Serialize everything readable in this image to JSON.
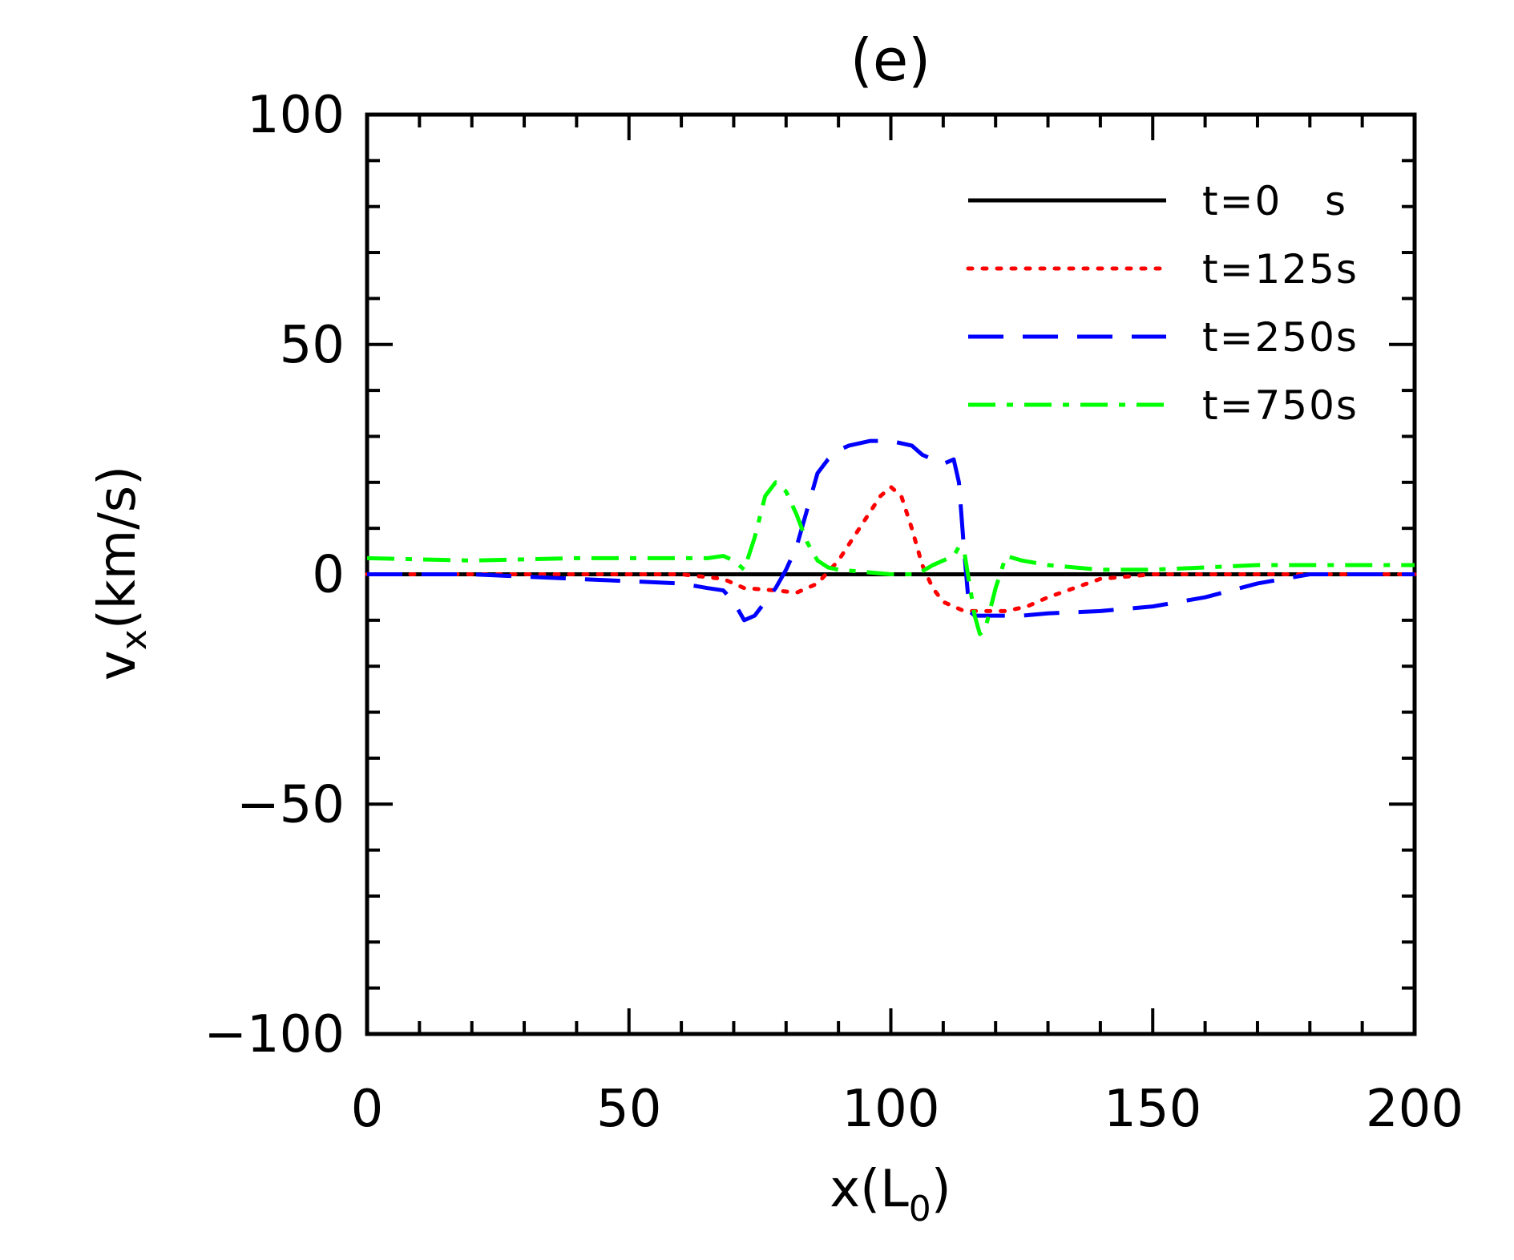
{
  "chart_data": {
    "type": "line",
    "title": "(e)",
    "xlabel": "x(L",
    "xlabel_sub": "0",
    "xlabel_end": ")",
    "ylabel": "v",
    "ylabel_sub": "x",
    "ylabel_end": "(km/s)",
    "xlim": [
      0,
      200
    ],
    "ylim": [
      -100,
      100
    ],
    "xticks": [
      0,
      50,
      100,
      150,
      200
    ],
    "xtick_labels": [
      "0",
      "50",
      "100",
      "150",
      "200"
    ],
    "yticks": [
      100,
      50,
      0,
      -50,
      -100
    ],
    "ytick_labels": [
      "100",
      "50",
      "0",
      "−50",
      "−100"
    ],
    "x_minor_step": 10,
    "y_minor_step": 10,
    "grid": false,
    "legend_position": "top-right",
    "series": [
      {
        "name": "t=0   s",
        "color": "#000000",
        "style": "solid",
        "x": [
          0,
          200
        ],
        "y": [
          0,
          0
        ]
      },
      {
        "name": "t=125s",
        "color": "#ff0000",
        "style": "dotted",
        "x": [
          0,
          20,
          40,
          60,
          68,
          72,
          78,
          82,
          86,
          90,
          94,
          98,
          100,
          102,
          104,
          106,
          108,
          110,
          114,
          118,
          122,
          126,
          130,
          140,
          150,
          160,
          170,
          180,
          190,
          200
        ],
        "y": [
          0,
          0,
          0,
          0,
          -1,
          -3,
          -3.5,
          -4,
          -2,
          3,
          10,
          17,
          19,
          17,
          10,
          2,
          -3,
          -6,
          -8,
          -8,
          -8,
          -7,
          -5,
          -1,
          0,
          0,
          0,
          0,
          0,
          0
        ]
      },
      {
        "name": "t=250s",
        "color": "#0000ff",
        "style": "dashed",
        "x": [
          0,
          20,
          40,
          60,
          65,
          68,
          70,
          72,
          74,
          76,
          78,
          80,
          82,
          84,
          86,
          88,
          90,
          92,
          94,
          96,
          98,
          100,
          102,
          104,
          106,
          108,
          110,
          112,
          113,
          114,
          115,
          116,
          118,
          120,
          122,
          125,
          130,
          140,
          150,
          160,
          170,
          180,
          190,
          200
        ],
        "y": [
          0,
          0,
          -1,
          -2,
          -3,
          -3.5,
          -6,
          -10,
          -9,
          -6,
          -3,
          1,
          6,
          14,
          22,
          25,
          27,
          28,
          28.5,
          29,
          29,
          29,
          28.5,
          28,
          26,
          25,
          24,
          25,
          20,
          5,
          -8,
          -9,
          -9,
          -9,
          -9,
          -9,
          -8.5,
          -8,
          -7,
          -5,
          -2,
          0,
          0,
          0
        ]
      },
      {
        "name": "t=750s",
        "color": "#00ff00",
        "style": "dashdot",
        "x": [
          0,
          20,
          40,
          60,
          65,
          68,
          70,
          72,
          74,
          76,
          78,
          80,
          82,
          84,
          86,
          88,
          90,
          95,
          100,
          105,
          108,
          110,
          112,
          113,
          114,
          115,
          116,
          117,
          118,
          120,
          122,
          125,
          130,
          140,
          150,
          160,
          170,
          180,
          190,
          200
        ],
        "y": [
          3.5,
          3,
          3.5,
          3.5,
          3.5,
          4,
          3,
          1,
          8,
          17,
          20,
          18,
          13,
          7,
          3,
          1.5,
          1,
          0.5,
          0,
          0,
          2,
          3,
          4,
          6,
          5,
          -2,
          -9,
          -13,
          -12,
          -3,
          4,
          3,
          2,
          1,
          1,
          1.5,
          2,
          2,
          2,
          2
        ]
      }
    ]
  }
}
